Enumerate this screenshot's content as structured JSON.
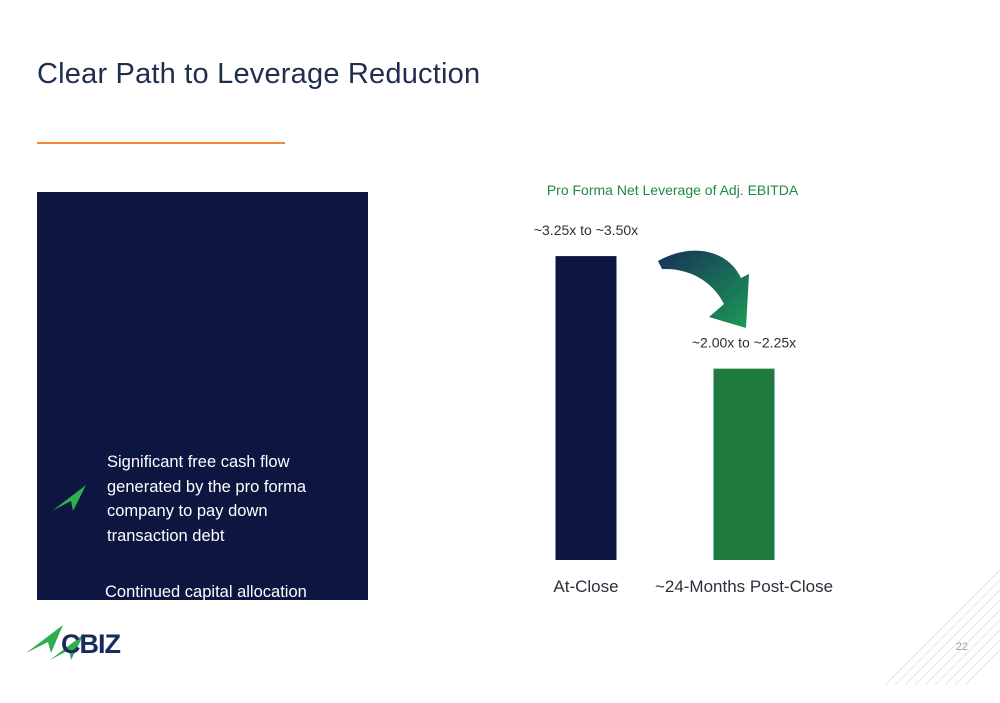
{
  "slide": {
    "title": "Clear Path to Leverage Reduction",
    "page_number": "22",
    "logo_text": "CBIZ"
  },
  "panel": {
    "bullets": [
      "Significant free cash flow generated by the pro forma company to pay down transaction debt",
      "Continued capital allocation approach addressing acquisitions, share repurchases, capital spending and deleveraging"
    ]
  },
  "colors": {
    "title": "#1f2d4f",
    "accent_rule": "#ef8a3c",
    "panel": "#0c1640",
    "bar_at_close": "#0c1640",
    "bar_post_close": "#1f7a3e",
    "chart_title": "#1f8a45",
    "brand_green": "#2fae4f"
  },
  "chart_data": {
    "type": "bar",
    "title": "Pro Forma Net Leverage of Adj. EBITDA",
    "categories": [
      "At-Close",
      "~24-Months Post-Close"
    ],
    "values": [
      3.375,
      2.125
    ],
    "data_labels": [
      "~3.25x to ~3.50x",
      "~2.00x to ~2.25x"
    ],
    "ylim": [
      0,
      4.22
    ],
    "xlabel": "",
    "ylabel": "",
    "grid": false,
    "legend": "none",
    "annotation": "downward arrow between bars"
  }
}
